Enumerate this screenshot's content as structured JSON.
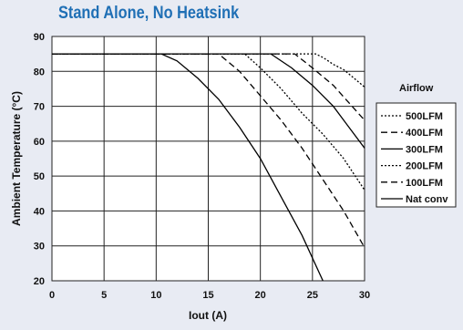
{
  "chart_data": {
    "type": "line",
    "title": "Stand Alone, No Heatsink",
    "xlabel": "Iout  (A)",
    "ylabel": "Ambient Temperature (°C)",
    "xlim": [
      0,
      30
    ],
    "ylim": [
      20,
      90
    ],
    "xticks": [
      0,
      5,
      10,
      15,
      20,
      25,
      30
    ],
    "yticks": [
      20,
      30,
      40,
      50,
      60,
      70,
      80,
      90
    ],
    "grid": true,
    "legend_title": "Airflow",
    "legend_position": "right",
    "series": [
      {
        "name": "500LFM",
        "dash": "2,2",
        "x": [
          0,
          25.3,
          26,
          27,
          28,
          29,
          30
        ],
        "y": [
          85,
          85,
          84,
          82,
          80.5,
          78,
          75.5
        ]
      },
      {
        "name": "400LFM",
        "dash": "7,4",
        "x": [
          0,
          23.3,
          25,
          27,
          28.5,
          30
        ],
        "y": [
          85,
          85,
          81,
          76,
          71,
          66
        ]
      },
      {
        "name": "300LFM",
        "dash": "",
        "x": [
          0,
          21,
          23,
          25,
          27,
          28.5,
          30
        ],
        "y": [
          85,
          85,
          81,
          76,
          70,
          64,
          58
        ]
      },
      {
        "name": "200LFM",
        "dash": "2,2",
        "x": [
          0,
          18.5,
          20,
          22,
          24,
          26,
          28,
          30
        ],
        "y": [
          85,
          85,
          81,
          75,
          68,
          62,
          55,
          46
        ]
      },
      {
        "name": "100LFM",
        "dash": "7,4",
        "x": [
          0,
          16,
          18,
          20,
          22,
          24,
          26,
          28,
          30
        ],
        "y": [
          85,
          85,
          80,
          73,
          66,
          58,
          49,
          40,
          29.5
        ]
      },
      {
        "name": "Nat conv",
        "dash": "",
        "x": [
          0,
          10.5,
          12,
          14,
          16,
          18,
          20,
          22,
          24,
          26
        ],
        "y": [
          85,
          85,
          83,
          78,
          72,
          64,
          55,
          44,
          33,
          20
        ]
      }
    ]
  }
}
